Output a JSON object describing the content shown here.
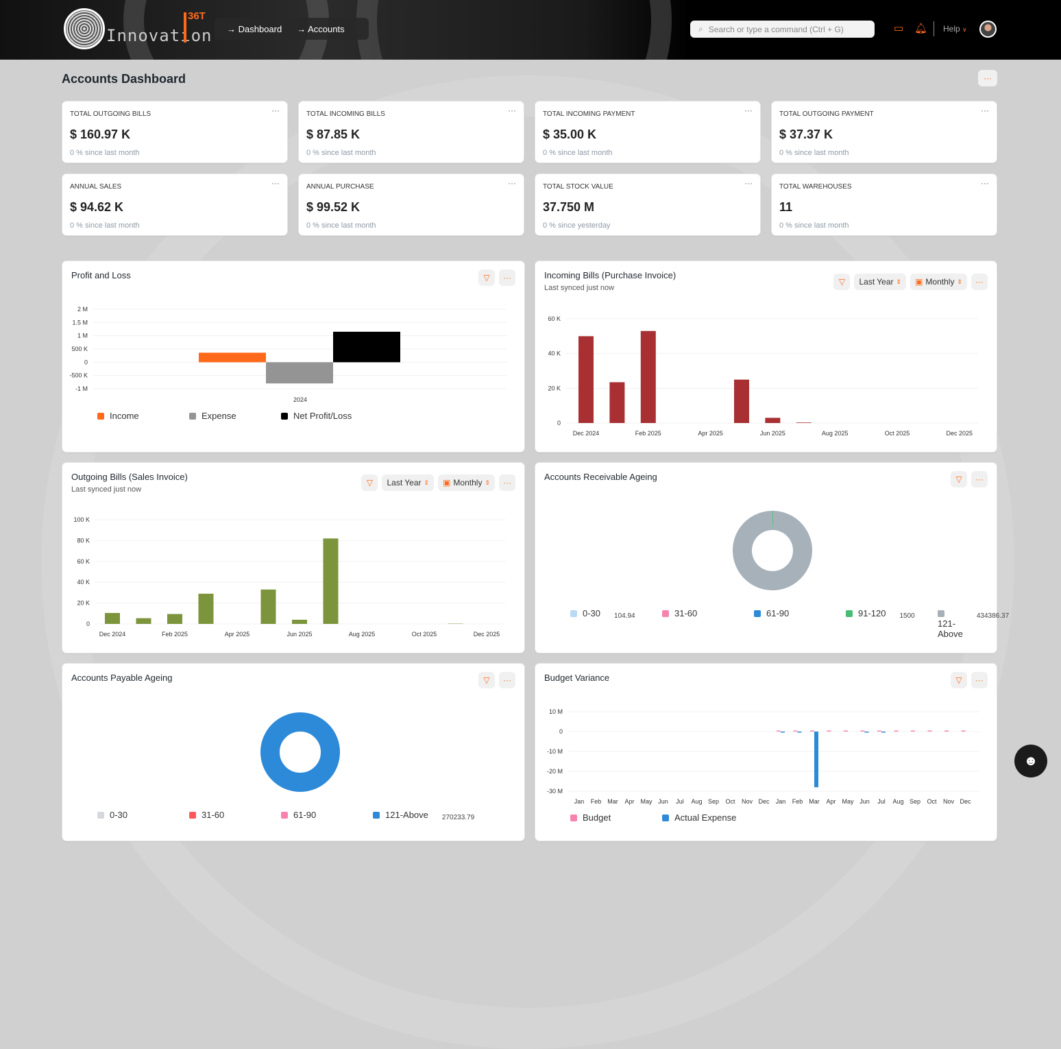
{
  "header": {
    "logo_text": "Innovation",
    "logo_tag": "36T",
    "breadcrumbs": [
      "Dashboard",
      "Accounts"
    ],
    "search_placeholder": "Search or type a command (Ctrl + G)",
    "help": "Help"
  },
  "page": {
    "title": "Accounts Dashboard",
    "menu": "···"
  },
  "kpis": [
    {
      "label": "TOTAL OUTGOING BILLS",
      "value": "$ 160.97 K",
      "sub": "0 % since last month"
    },
    {
      "label": "TOTAL INCOMING BILLS",
      "value": "$ 87.85 K",
      "sub": "0 % since last month"
    },
    {
      "label": "TOTAL INCOMING PAYMENT",
      "value": "$ 35.00 K",
      "sub": "0 % since last month"
    },
    {
      "label": "TOTAL OUTGOING PAYMENT",
      "value": "$ 37.37 K",
      "sub": "0 % since last month"
    },
    {
      "label": "ANNUAL SALES",
      "value": "$ 94.62 K",
      "sub": "0 % since last month"
    },
    {
      "label": "ANNUAL PURCHASE",
      "value": "$ 99.52 K",
      "sub": "0 % since last month"
    },
    {
      "label": "TOTAL STOCK VALUE",
      "value": "37.750 M",
      "sub": "0 % since yesterday"
    },
    {
      "label": "TOTAL WAREHOUSES",
      "value": "11",
      "sub": "0 % since last month"
    }
  ],
  "controls": {
    "period": "Last Year",
    "interval": "Monthly",
    "more": "···"
  },
  "panels": {
    "pl": {
      "title": "Profit and Loss"
    },
    "incoming": {
      "title": "Incoming Bills (Purchase Invoice)",
      "sub": "Last synced just now"
    },
    "outgoing": {
      "title": "Outgoing Bills (Sales Invoice)",
      "sub": "Last synced just now"
    },
    "receivable": {
      "title": "Accounts Receivable Ageing"
    },
    "payable": {
      "title": "Accounts Payable Ageing"
    },
    "budget": {
      "title": "Budget Variance"
    }
  },
  "chart_data": [
    {
      "id": "pl",
      "type": "bar",
      "categories": [
        "2024"
      ],
      "ylim": [
        -1000000,
        2000000
      ],
      "yticks": [
        "2 M",
        "1.5 M",
        "1 M",
        "500 K",
        "0",
        "-500 K",
        "-1 M"
      ],
      "grid": true,
      "legend": "bottom",
      "series": [
        {
          "name": "Income",
          "values": [
            360000
          ],
          "color": "#ff6a1a"
        },
        {
          "name": "Expense",
          "values": [
            -800000
          ],
          "color": "#949494"
        },
        {
          "name": "Net Profit/Loss",
          "values": [
            1150000
          ],
          "color": "#000000"
        }
      ]
    },
    {
      "id": "incoming",
      "type": "bar",
      "categories": [
        "Dec 2024",
        "Jan 2025",
        "Feb 2025",
        "Mar 2025",
        "Apr 2025",
        "May 2025",
        "Jun 2025",
        "Jul 2025",
        "Aug 2025",
        "Sep 2025",
        "Oct 2025",
        "Nov 2025",
        "Dec 2025"
      ],
      "xticks": [
        "Dec 2024",
        "Feb 2025",
        "Apr 2025",
        "Jun 2025",
        "Aug 2025",
        "Oct 2025",
        "Dec 2025"
      ],
      "ylim": [
        0,
        60000
      ],
      "yticks": [
        "60 K",
        "40 K",
        "20 K",
        "0"
      ],
      "color": "#a83033",
      "values": [
        50000,
        23500,
        53000,
        0,
        0,
        25000,
        3000,
        300,
        0,
        0,
        0,
        0,
        0
      ]
    },
    {
      "id": "outgoing",
      "type": "bar",
      "categories": [
        "Dec 2024",
        "Jan 2025",
        "Feb 2025",
        "Mar 2025",
        "Apr 2025",
        "May 2025",
        "Jun 2025",
        "Jul 2025",
        "Aug 2025",
        "Sep 2025",
        "Oct 2025",
        "Nov 2025",
        "Dec 2025"
      ],
      "xticks": [
        "Dec 2024",
        "Feb 2025",
        "Apr 2025",
        "Jun 2025",
        "Aug 2025",
        "Oct 2025",
        "Dec 2025"
      ],
      "ylim": [
        0,
        100000
      ],
      "yticks": [
        "100 K",
        "80 K",
        "60 K",
        "40 K",
        "20 K",
        "0"
      ],
      "color": "#7c943b",
      "values": [
        10500,
        5500,
        9500,
        29000,
        0,
        33000,
        4000,
        82000,
        0,
        0,
        0,
        300,
        0
      ]
    },
    {
      "id": "receivable",
      "type": "pie",
      "donut": true,
      "slices": [
        {
          "label": "0-30",
          "value": 104.94,
          "display": "104.94",
          "color": "#b7daf7"
        },
        {
          "label": "31-60",
          "value": 0,
          "color": "#f683ae"
        },
        {
          "label": "61-90",
          "value": 0,
          "color": "#2d8ad8"
        },
        {
          "label": "91-120",
          "value": 1500,
          "display": "1500",
          "color": "#48bb74"
        },
        {
          "label": "121-Above",
          "value": 434386.37,
          "display": "434386.37",
          "color": "#a6b1b9"
        }
      ]
    },
    {
      "id": "payable",
      "type": "pie",
      "donut": true,
      "slices": [
        {
          "label": "0-30",
          "value": 0,
          "color": "#d5d9de"
        },
        {
          "label": "31-60",
          "value": 0,
          "color": "#ff5858"
        },
        {
          "label": "61-90",
          "value": 0,
          "color": "#f683ae"
        },
        {
          "label": "121-Above",
          "value": 270233.79,
          "display": "270233.79",
          "color": "#2d8ad8"
        }
      ]
    },
    {
      "id": "budget",
      "type": "bar",
      "categories": [
        "Jan",
        "Feb",
        "Mar",
        "Apr",
        "May",
        "Jun",
        "Jul",
        "Aug",
        "Sep",
        "Oct",
        "Nov",
        "Dec",
        "Jan",
        "Feb",
        "Mar",
        "Apr",
        "May",
        "Jun",
        "Jul",
        "Aug",
        "Sep",
        "Oct",
        "Nov",
        "Dec"
      ],
      "ylim": [
        -30000000,
        10000000
      ],
      "yticks": [
        "10 M",
        "0",
        "-10 M",
        "-20 M",
        "-30 M"
      ],
      "series": [
        {
          "name": "Budget",
          "color": "#f683ae",
          "values": [
            0,
            0,
            0,
            0,
            0,
            0,
            0,
            0,
            0,
            0,
            0,
            0,
            100000,
            100000,
            100000,
            100000,
            100000,
            100000,
            100000,
            100000,
            100000,
            100000,
            100000,
            100000
          ]
        },
        {
          "name": "Actual Expense",
          "color": "#2d8ad8",
          "values": [
            0,
            0,
            0,
            0,
            0,
            0,
            0,
            0,
            0,
            0,
            0,
            0,
            -200000,
            -200000,
            -28000000,
            0,
            0,
            -200000,
            -50000,
            0,
            0,
            0,
            0,
            0
          ]
        }
      ]
    }
  ]
}
